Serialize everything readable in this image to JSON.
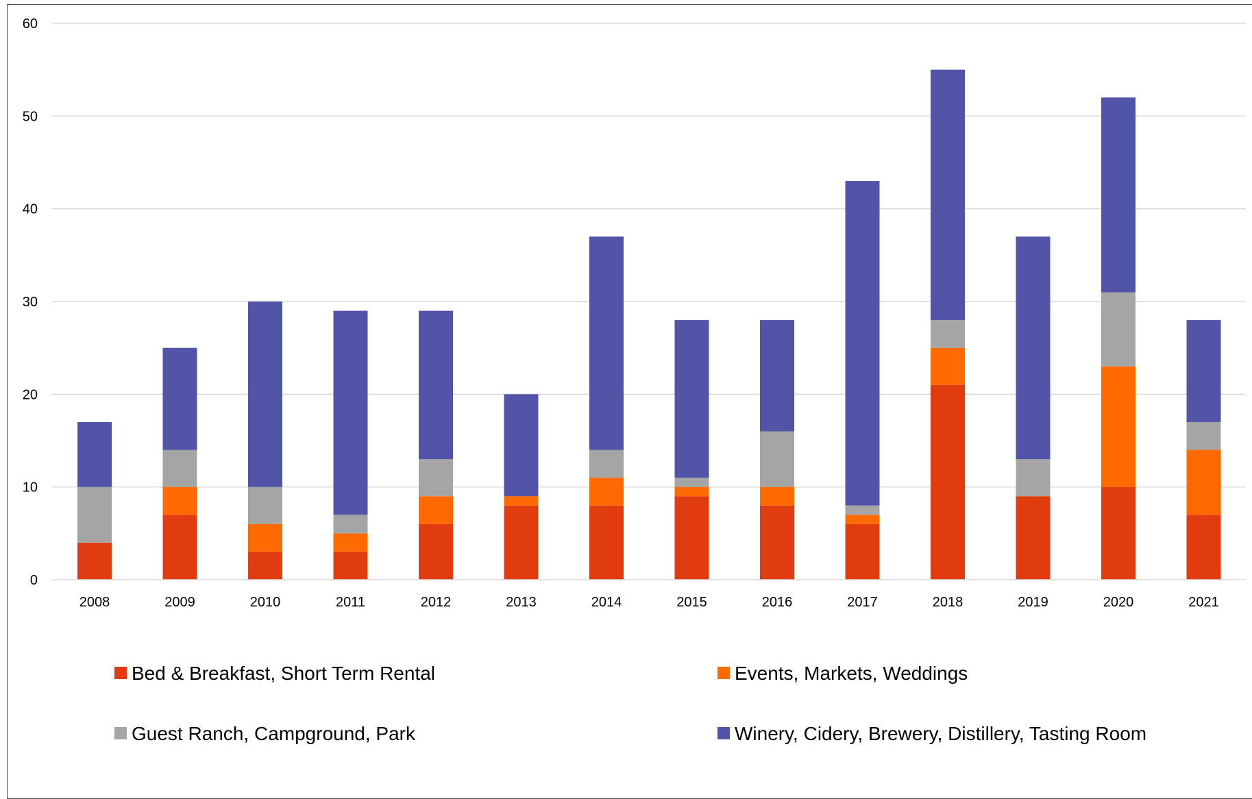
{
  "chart_data": {
    "type": "bar",
    "stacked": true,
    "title": "",
    "xlabel": "",
    "ylabel": "",
    "ylim": [
      0,
      60
    ],
    "yticks": [
      0,
      10,
      20,
      30,
      40,
      50,
      60
    ],
    "grid": true,
    "legend_position": "bottom",
    "categories": [
      "2008",
      "2009",
      "2010",
      "2011",
      "2012",
      "2013",
      "2014",
      "2015",
      "2016",
      "2017",
      "2018",
      "2019",
      "2020",
      "2021"
    ],
    "series": [
      {
        "name": "Bed & Breakfast, Short Term Rental",
        "color": "#E03C10",
        "values": [
          4,
          7,
          3,
          3,
          6,
          8,
          8,
          9,
          8,
          6,
          21,
          9,
          10,
          7
        ]
      },
      {
        "name": "Events, Markets, Weddings",
        "color": "#FF6A00",
        "values": [
          0,
          3,
          3,
          2,
          3,
          1,
          3,
          1,
          2,
          1,
          4,
          0,
          13,
          7
        ]
      },
      {
        "name": "Guest Ranch, Campground, Park",
        "color": "#A5A5A5",
        "values": [
          6,
          4,
          4,
          2,
          4,
          0,
          3,
          1,
          6,
          1,
          3,
          4,
          8,
          3
        ]
      },
      {
        "name": "Winery, Cidery, Brewery, Distillery, Tasting Room",
        "color": "#5254A8",
        "values": [
          7,
          11,
          20,
          22,
          16,
          11,
          23,
          17,
          12,
          35,
          27,
          24,
          21,
          11
        ]
      }
    ]
  }
}
